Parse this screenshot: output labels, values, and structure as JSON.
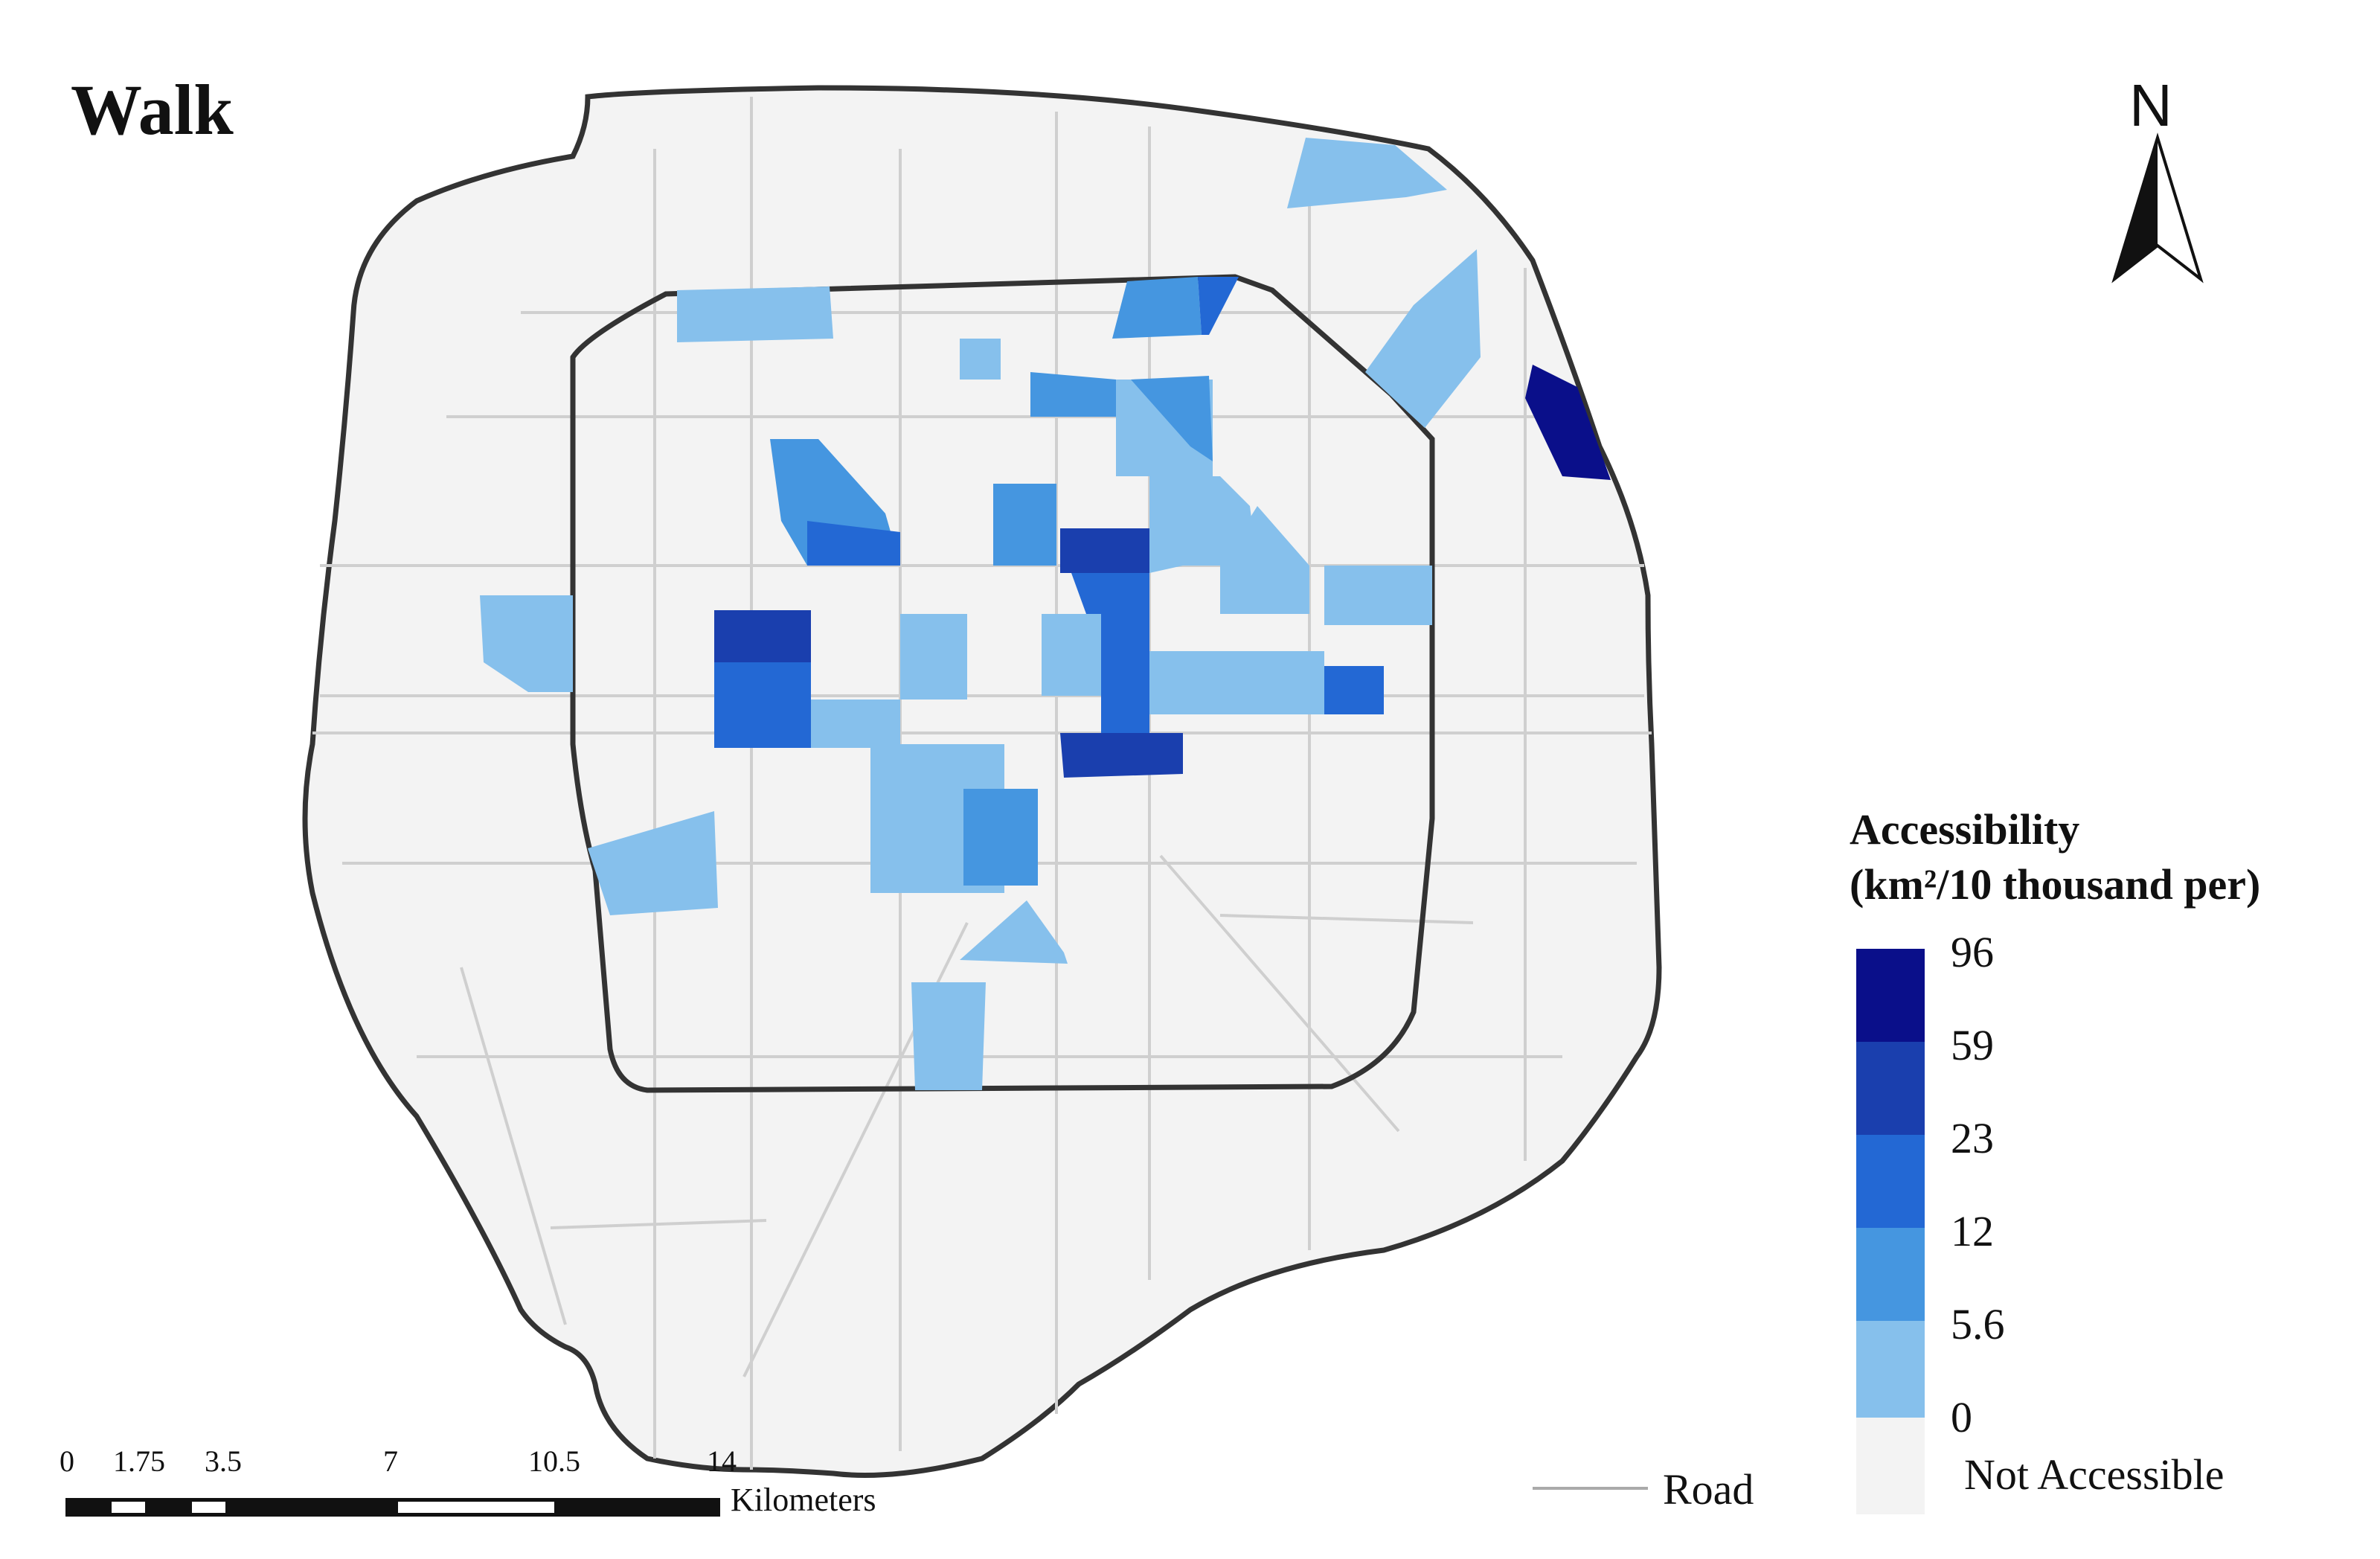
{
  "title": "Walk",
  "north_arrow": {
    "label": "N",
    "icon": "north-arrow-icon"
  },
  "legend": {
    "title_line1": "Accessibility",
    "title_line2": "(km²/10  thousand per)",
    "ticks": [
      "96",
      "59",
      "23",
      "12",
      "5.6",
      "0"
    ],
    "classes": [
      {
        "range": "59–96",
        "color": "#0a0f8a"
      },
      {
        "range": "23–59",
        "color": "#1a3fae"
      },
      {
        "range": "12–23",
        "color": "#2368d4"
      },
      {
        "range": "5.6–12",
        "color": "#4596e0"
      },
      {
        "range": "0–5.6",
        "color": "#86c0ec"
      }
    ],
    "not_accessible": {
      "label": "Not Accessible",
      "color": "#f3f3f3"
    },
    "road": {
      "label": "Road",
      "color": "#c8c8c8"
    }
  },
  "scale_bar": {
    "ticks": [
      "0",
      "1.75",
      "3.5",
      "7",
      "10.5",
      "14"
    ],
    "unit": "Kilometers"
  }
}
